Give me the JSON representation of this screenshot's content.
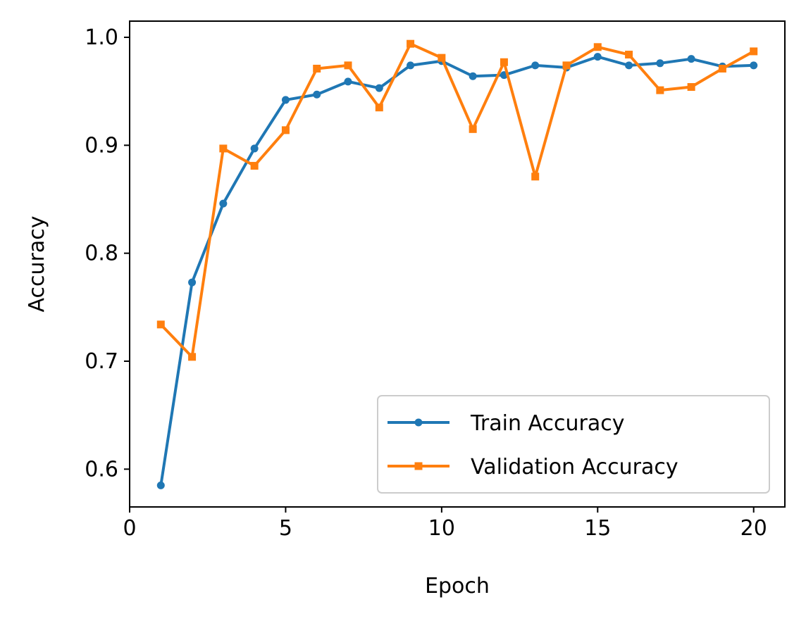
{
  "chart_data": {
    "type": "line",
    "title": "",
    "xlabel": "Epoch",
    "ylabel": "Accuracy",
    "xlim": [
      0,
      21
    ],
    "ylim": [
      0.565,
      1.015
    ],
    "xticks": [
      0,
      5,
      10,
      15,
      20
    ],
    "xtick_labels": [
      "0",
      "5",
      "10",
      "15",
      "20"
    ],
    "yticks": [
      0.6,
      0.7,
      0.8,
      0.9,
      1.0
    ],
    "ytick_labels": [
      "0.6",
      "0.7",
      "0.8",
      "0.9",
      "1.0"
    ],
    "grid": false,
    "legend_position": "lower-right",
    "x": [
      1,
      2,
      3,
      4,
      5,
      6,
      7,
      8,
      9,
      10,
      11,
      12,
      13,
      14,
      15,
      16,
      17,
      18,
      19,
      20
    ],
    "series": [
      {
        "name": "Train Accuracy",
        "color": "#1f77b4",
        "marker": "circle",
        "values": [
          0.585,
          0.773,
          0.846,
          0.897,
          0.942,
          0.947,
          0.959,
          0.953,
          0.974,
          0.978,
          0.964,
          0.965,
          0.974,
          0.972,
          0.982,
          0.974,
          0.976,
          0.98,
          0.973,
          0.974
        ]
      },
      {
        "name": "Validation Accuracy",
        "color": "#ff7f0e",
        "marker": "square",
        "values": [
          0.734,
          0.704,
          0.897,
          0.881,
          0.914,
          0.971,
          0.974,
          0.935,
          0.994,
          0.981,
          0.915,
          0.977,
          0.871,
          0.974,
          0.991,
          0.984,
          0.951,
          0.954,
          0.971,
          0.987
        ]
      }
    ]
  }
}
